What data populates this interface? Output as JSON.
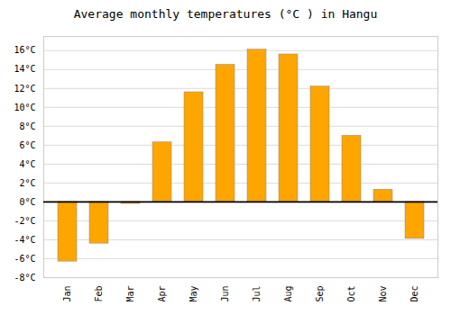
{
  "chart_data": {
    "type": "bar",
    "title": "Average monthly temperatures (°C ) in Hangu",
    "categories": [
      "Jan",
      "Feb",
      "Mar",
      "Apr",
      "May",
      "Jun",
      "Jul",
      "Aug",
      "Sep",
      "Oct",
      "Nov",
      "Dec"
    ],
    "values": [
      -6.3,
      -4.4,
      -0.2,
      6.3,
      11.6,
      14.5,
      16.1,
      15.6,
      12.2,
      7.0,
      1.3,
      -3.9
    ],
    "color": "#FFA500",
    "ylim": [
      -8,
      17.5
    ],
    "yticks": [
      {
        "value": -8,
        "label": "-8°C"
      },
      {
        "value": -6,
        "label": "-6°C"
      },
      {
        "value": -4,
        "label": "-4°C"
      },
      {
        "value": -2,
        "label": "-2°C"
      },
      {
        "value": 0,
        "label": "0°C"
      },
      {
        "value": 2,
        "label": "2°C"
      },
      {
        "value": 4,
        "label": "4°C"
      },
      {
        "value": 6,
        "label": "6°C"
      },
      {
        "value": 8,
        "label": "8°C"
      },
      {
        "value": 10,
        "label": "10°C"
      },
      {
        "value": 12,
        "label": "12°C"
      },
      {
        "value": 14,
        "label": "14°C"
      },
      {
        "value": 16,
        "label": "16°C"
      }
    ],
    "grid": true
  }
}
